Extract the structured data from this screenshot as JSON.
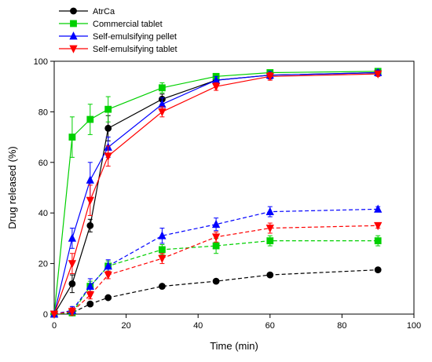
{
  "chart_data": {
    "type": "line",
    "xlabel": "Time (min)",
    "ylabel": "Drug released (%)",
    "xlim": [
      0,
      100
    ],
    "ylim": [
      0,
      100
    ],
    "xticks": [
      0,
      20,
      40,
      60,
      80,
      100
    ],
    "yticks": [
      0,
      20,
      40,
      60,
      80,
      100
    ],
    "legend_position": "top-left",
    "grid": false,
    "x": [
      0,
      5,
      10,
      15,
      30,
      45,
      60,
      90
    ],
    "series": [
      {
        "name": "AtrCa",
        "color": "#000000",
        "marker": "circle",
        "line": "solid",
        "values": [
          0,
          12,
          35,
          73.5,
          85,
          92.5,
          94.5,
          95.5
        ],
        "errors": [
          0.5,
          3.5,
          2.5,
          5,
          2,
          1.5,
          1.5,
          1
        ]
      },
      {
        "name": "Commercial tablet",
        "color": "#00d000",
        "marker": "square",
        "line": "solid",
        "values": [
          0,
          70,
          77,
          81,
          89.5,
          94,
          95.5,
          96
        ],
        "errors": [
          0.5,
          8,
          6,
          5,
          2,
          1,
          1,
          1
        ]
      },
      {
        "name": "Self-emulsifying pellet",
        "color": "#0000ff",
        "marker": "triangle-up",
        "line": "solid",
        "values": [
          0,
          30,
          53,
          66,
          83,
          92.5,
          94.5,
          95.5
        ],
        "errors": [
          0.5,
          4,
          7,
          4,
          2.5,
          1.5,
          1.5,
          1
        ]
      },
      {
        "name": "Self-emulsifying tablet",
        "color": "#ff0000",
        "marker": "triangle-down",
        "line": "solid",
        "values": [
          0,
          20,
          45,
          62.5,
          80,
          90,
          94,
          95
        ],
        "errors": [
          0.5,
          4,
          6,
          4,
          2,
          1.5,
          1.5,
          1
        ]
      },
      {
        "name": "AtrCa",
        "color": "#000000",
        "marker": "circle",
        "line": "dashed",
        "in_legend": false,
        "values": [
          0,
          0.5,
          4,
          6.5,
          11,
          13,
          15.5,
          17.5
        ],
        "errors": [
          0.5,
          0.5,
          0.5,
          0.5,
          0.5,
          0.5,
          0.5,
          0.5
        ]
      },
      {
        "name": "Commercial tablet",
        "color": "#00d000",
        "marker": "square",
        "line": "dashed",
        "in_legend": false,
        "values": [
          0,
          0.5,
          11,
          19,
          25.5,
          27,
          29,
          29
        ],
        "errors": [
          0.5,
          0.5,
          2,
          2,
          2,
          3,
          2,
          2
        ]
      },
      {
        "name": "Self-emulsifying pellet",
        "color": "#0000ff",
        "marker": "triangle-up",
        "line": "dashed",
        "in_legend": false,
        "values": [
          0,
          1.5,
          11,
          19,
          31,
          35.5,
          40.5,
          41.5
        ],
        "errors": [
          0.5,
          1.5,
          3,
          2.5,
          3,
          2.5,
          2,
          1
        ]
      },
      {
        "name": "Self-emulsifying tablet",
        "color": "#ff0000",
        "marker": "triangle-down",
        "line": "dashed",
        "in_legend": false,
        "values": [
          0,
          1,
          7.5,
          15.5,
          22,
          30.5,
          34,
          35
        ],
        "errors": [
          0.5,
          1.5,
          1.5,
          1.5,
          2,
          2,
          2,
          1
        ]
      }
    ]
  }
}
